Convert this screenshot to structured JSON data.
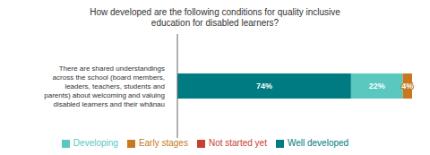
{
  "chart_data": {
    "type": "bar",
    "title": "How developed are the following conditions for quality inclusive\neducation for disabled learners?",
    "orientation": "horizontal",
    "stacked": true,
    "categories": [
      "There are shared understandings\nacross the school (board members,\nleaders, teachers, students and\nparents) about welcoming and valuing\ndisabled learners and their whānau"
    ],
    "series": [
      {
        "name": "Well developed",
        "color": "#007B82",
        "values": [
          74
        ],
        "value_labels": [
          "74%"
        ]
      },
      {
        "name": "Developing",
        "color": "#5BC8C0",
        "values": [
          22
        ],
        "value_labels": [
          "22%"
        ]
      },
      {
        "name": "Early stages",
        "color": "#C87820",
        "values": [
          4
        ],
        "value_labels": [
          "4%"
        ]
      },
      {
        "name": "Not started yet",
        "color": "#C84030",
        "values": [
          0
        ],
        "value_labels": [
          null
        ]
      }
    ],
    "xlim": [
      0,
      100
    ],
    "data_labels": true,
    "tick_labels": "y"
  }
}
